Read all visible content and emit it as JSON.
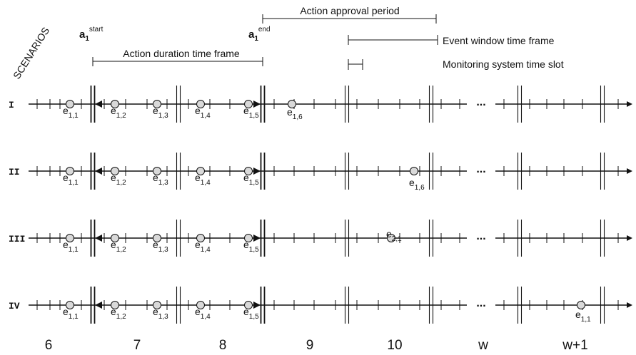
{
  "header": {
    "scenarios_label": "SCENARIOS",
    "a_start": {
      "base": "a",
      "sub": "1",
      "sup": "start"
    },
    "a_end": {
      "base": "a",
      "sub": "1",
      "sup": "end"
    },
    "action_approval_period": "Action approval period",
    "action_duration_time_frame": "Action duration time frame",
    "event_window_time_frame": "Event window time frame",
    "monitoring_system_time_slot": "Monitoring system time slot"
  },
  "ellipsis": "...",
  "scenarios": [
    {
      "roman": "I",
      "events": [
        {
          "base": "e",
          "sub": "1,1"
        },
        {
          "base": "e",
          "sub": "1,2"
        },
        {
          "base": "e",
          "sub": "1,3"
        },
        {
          "base": "e",
          "sub": "1,4"
        },
        {
          "base": "e",
          "sub": "1,5"
        },
        {
          "base": "e",
          "sub": "1,6"
        }
      ]
    },
    {
      "roman": "II",
      "events": [
        {
          "base": "e",
          "sub": "1,1"
        },
        {
          "base": "e",
          "sub": "1,2"
        },
        {
          "base": "e",
          "sub": "1,3"
        },
        {
          "base": "e",
          "sub": "1,4"
        },
        {
          "base": "e",
          "sub": "1,5"
        },
        {
          "base": "e",
          "sub": "1,6"
        }
      ]
    },
    {
      "roman": "III",
      "events": [
        {
          "base": "e",
          "sub": "1,1"
        },
        {
          "base": "e",
          "sub": "1,2"
        },
        {
          "base": "e",
          "sub": "1,3"
        },
        {
          "base": "e",
          "sub": "1,4"
        },
        {
          "base": "e",
          "sub": "1,5"
        },
        {
          "base": "e",
          "sub": "2,1"
        }
      ]
    },
    {
      "roman": "IV",
      "events": [
        {
          "base": "e",
          "sub": "1,1"
        },
        {
          "base": "e",
          "sub": "1,2"
        },
        {
          "base": "e",
          "sub": "1,3"
        },
        {
          "base": "e",
          "sub": "1,4"
        },
        {
          "base": "e",
          "sub": "1,5"
        },
        {
          "base": "e",
          "sub": "1,1"
        }
      ]
    }
  ],
  "window_labels": [
    "6",
    "7",
    "8",
    "9",
    "10",
    "w",
    "w+1"
  ]
}
